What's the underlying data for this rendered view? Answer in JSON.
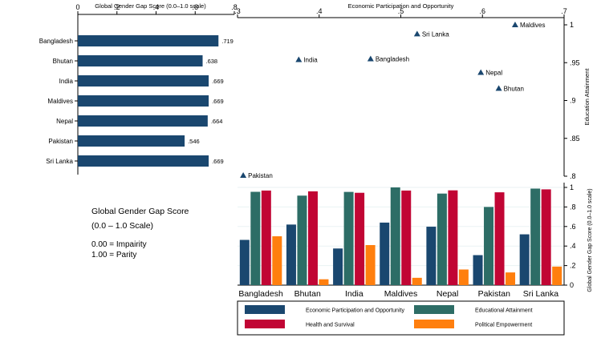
{
  "colors": {
    "navy": "#1a476f",
    "teal": "#2d6d66",
    "red": "#c10534",
    "orange": "#ff7f0e",
    "frame": "#000000",
    "grid": "#eaf2f3"
  },
  "chart_data": [
    {
      "id": "score-bars",
      "type": "bar",
      "orientation": "horizontal",
      "title": "Global Gender Gap Score (0.0–1.0 scale)",
      "categories": [
        "Bangladesh",
        "Bhutan",
        "India",
        "Maldives",
        "Nepal",
        "Pakistan",
        "Sri Lanka"
      ],
      "values": [
        0.719,
        0.638,
        0.669,
        0.669,
        0.664,
        0.546,
        0.669
      ],
      "value_labels": [
        ".719",
        ".638",
        ".669",
        ".669",
        ".664",
        ".546",
        ".669"
      ],
      "xlim": [
        0,
        0.8
      ],
      "xticks": [
        0,
        0.2,
        0.4,
        0.6,
        0.8
      ],
      "xtick_labels": [
        "0",
        ".2",
        ".4",
        ".6",
        ".8"
      ],
      "axis_position": "top"
    },
    {
      "id": "scatter",
      "type": "scatter",
      "xlabel": "Economic Participation and Opportunity",
      "ylabel": "Education Attainment",
      "xlim": [
        0.3,
        0.7
      ],
      "ylim": [
        0.8,
        1.0
      ],
      "xticks": [
        0.3,
        0.4,
        0.5,
        0.6,
        0.7
      ],
      "xtick_labels": [
        ".3",
        ".4",
        ".5",
        ".6",
        ".7"
      ],
      "yticks": [
        0.8,
        0.85,
        0.9,
        0.95,
        1.0
      ],
      "ytick_labels": [
        ".8",
        ".85",
        ".9",
        ".95",
        "1"
      ],
      "points": [
        {
          "label": "Maldives",
          "x": 0.64,
          "y": 1.0
        },
        {
          "label": "Sri Lanka",
          "x": 0.52,
          "y": 0.988
        },
        {
          "label": "India",
          "x": 0.375,
          "y": 0.954
        },
        {
          "label": "Bangladesh",
          "x": 0.463,
          "y": 0.955
        },
        {
          "label": "Nepal",
          "x": 0.598,
          "y": 0.937
        },
        {
          "label": "Bhutan",
          "x": 0.62,
          "y": 0.916
        },
        {
          "label": "Pakistan",
          "x": 0.307,
          "y": 0.801
        }
      ]
    },
    {
      "id": "grouped-bars",
      "type": "bar",
      "ylabel": "Global Gender Gap Score (0.0–1.0 scale)",
      "ylim": [
        0,
        1
      ],
      "yticks": [
        0,
        0.2,
        0.4,
        0.6,
        0.8,
        1
      ],
      "ytick_labels": [
        "0",
        ".2",
        ".4",
        ".6",
        ".8",
        "1"
      ],
      "categories": [
        "Bangladesh",
        "Bhutan",
        "India",
        "Maldives",
        "Nepal",
        "Pakistan",
        "Sri Lanka"
      ],
      "series": [
        {
          "name": "Economic Participation and Opportunity",
          "color_key": "navy",
          "values": [
            0.463,
            0.62,
            0.375,
            0.64,
            0.598,
            0.307,
            0.52
          ]
        },
        {
          "name": "Educational Attainment",
          "color_key": "teal",
          "values": [
            0.955,
            0.916,
            0.954,
            1.0,
            0.937,
            0.8,
            0.988
          ]
        },
        {
          "name": "Health and Survival",
          "color_key": "red",
          "values": [
            0.968,
            0.96,
            0.945,
            0.968,
            0.97,
            0.95,
            0.98
          ]
        },
        {
          "name": "Political Empowerment",
          "color_key": "orange",
          "values": [
            0.5,
            0.06,
            0.41,
            0.075,
            0.16,
            0.13,
            0.19
          ]
        }
      ]
    }
  ],
  "notes": {
    "title": "Global Gender Gap Score",
    "scale": "(0.0 – 1.0 Scale)",
    "line1": "0.00 = Impairity",
    "line2": "1.00 = Parity"
  }
}
